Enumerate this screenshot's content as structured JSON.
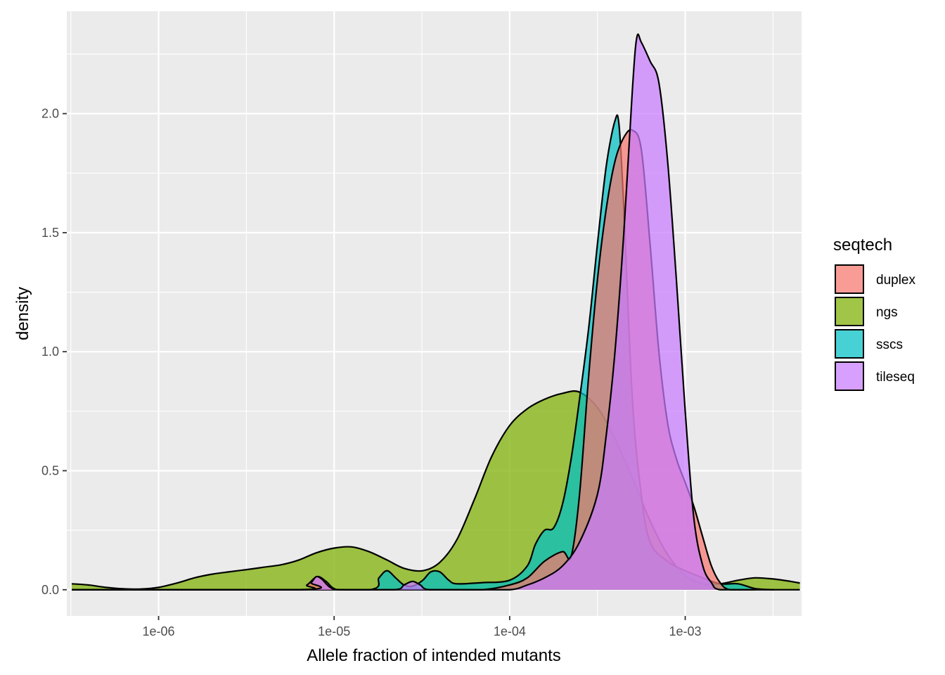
{
  "chart_data": {
    "type": "area",
    "subtype": "density",
    "title": "",
    "xlabel": "Allele fraction of intended mutants",
    "ylabel": "density",
    "x_scale": "log10",
    "xlim": [
      3e-07,
      0.0046
    ],
    "ylim": [
      -0.11,
      2.43
    ],
    "x_ticks": [
      {
        "value": 1e-06,
        "label": "1e-06"
      },
      {
        "value": 1e-05,
        "label": "1e-05"
      },
      {
        "value": 0.0001,
        "label": "1e-04"
      },
      {
        "value": 0.001,
        "label": "1e-03"
      }
    ],
    "y_ticks": [
      {
        "value": 0.0,
        "label": "0.0"
      },
      {
        "value": 0.5,
        "label": "0.5"
      },
      {
        "value": 1.0,
        "label": "1.0"
      },
      {
        "value": 1.5,
        "label": "1.5"
      },
      {
        "value": 2.0,
        "label": "2.0"
      }
    ],
    "grid": true,
    "legend": {
      "title": "seqtech",
      "position": "right"
    },
    "series": [
      {
        "name": "ngs",
        "color": "#7CAE00",
        "points": [
          [
            3.2e-07,
            0.025
          ],
          [
            4e-07,
            0.02
          ],
          [
            5e-07,
            0.01
          ],
          [
            6.3e-07,
            0.004
          ],
          [
            7.9e-07,
            0.003
          ],
          [
            1e-06,
            0.01
          ],
          [
            1.3e-06,
            0.03
          ],
          [
            1.6e-06,
            0.05
          ],
          [
            2e-06,
            0.065
          ],
          [
            2.5e-06,
            0.075
          ],
          [
            3.2e-06,
            0.085
          ],
          [
            4e-06,
            0.095
          ],
          [
            5e-06,
            0.105
          ],
          [
            6.3e-06,
            0.125
          ],
          [
            7.9e-06,
            0.155
          ],
          [
            1e-05,
            0.175
          ],
          [
            1.26e-05,
            0.18
          ],
          [
            1.58e-05,
            0.16
          ],
          [
            2e-05,
            0.125
          ],
          [
            2.5e-05,
            0.09
          ],
          [
            3.2e-05,
            0.08
          ],
          [
            4e-05,
            0.115
          ],
          [
            5e-05,
            0.21
          ],
          [
            6.3e-05,
            0.38
          ],
          [
            7.9e-05,
            0.56
          ],
          [
            0.0001,
            0.69
          ],
          [
            0.000126,
            0.76
          ],
          [
            0.000158,
            0.8
          ],
          [
            0.0002,
            0.825
          ],
          [
            0.00025,
            0.83
          ],
          [
            0.00032,
            0.76
          ],
          [
            0.0004,
            0.63
          ],
          [
            0.0005,
            0.47
          ],
          [
            0.00063,
            0.29
          ],
          [
            0.00079,
            0.15
          ],
          [
            0.001,
            0.06
          ],
          [
            0.00126,
            0.025
          ],
          [
            0.00158,
            0.025
          ],
          [
            0.002,
            0.04
          ],
          [
            0.0025,
            0.05
          ],
          [
            0.0032,
            0.045
          ],
          [
            0.004,
            0.035
          ],
          [
            0.0045,
            0.028
          ]
        ]
      },
      {
        "name": "sscs",
        "color": "#00BFC4",
        "points": [
          [
            3.2e-07,
            0.0
          ],
          [
            5e-06,
            0.0
          ],
          [
            1.58e-05,
            0.0
          ],
          [
            1.8e-05,
            0.05
          ],
          [
            2e-05,
            0.08
          ],
          [
            2.24e-05,
            0.05
          ],
          [
            2.5e-05,
            0.02
          ],
          [
            2.8e-05,
            0.015
          ],
          [
            3.2e-05,
            0.04
          ],
          [
            3.55e-05,
            0.075
          ],
          [
            4e-05,
            0.075
          ],
          [
            4.5e-05,
            0.04
          ],
          [
            5e-05,
            0.025
          ],
          [
            7e-05,
            0.03
          ],
          [
            0.0001,
            0.04
          ],
          [
            0.000126,
            0.1
          ],
          [
            0.00014,
            0.19
          ],
          [
            0.000158,
            0.25
          ],
          [
            0.000178,
            0.26
          ],
          [
            0.0002,
            0.36
          ],
          [
            0.000224,
            0.55
          ],
          [
            0.00025,
            0.8
          ],
          [
            0.000282,
            1.1
          ],
          [
            0.000316,
            1.45
          ],
          [
            0.000355,
            1.78
          ],
          [
            0.000398,
            1.97
          ],
          [
            0.00042,
            1.95
          ],
          [
            0.000447,
            1.6
          ],
          [
            0.0005,
            0.8
          ],
          [
            0.000562,
            0.4
          ],
          [
            0.000631,
            0.2
          ],
          [
            0.00079,
            0.12
          ],
          [
            0.001,
            0.08
          ],
          [
            0.00126,
            0.05
          ],
          [
            0.00158,
            0.025
          ],
          [
            0.002,
            0.025
          ],
          [
            0.0025,
            0.005
          ],
          [
            0.0032,
            0.0
          ]
        ]
      },
      {
        "name": "duplex",
        "color": "#F8766D",
        "points": [
          [
            3.2e-07,
            0.0
          ],
          [
            6e-06,
            0.0
          ],
          [
            7e-06,
            0.02
          ],
          [
            8e-06,
            0.055
          ],
          [
            9e-06,
            0.035
          ],
          [
            1e-05,
            0.005
          ],
          [
            1.2e-05,
            0.0
          ],
          [
            4e-05,
            0.0
          ],
          [
            7e-05,
            0.0
          ],
          [
            0.0001,
            0.02
          ],
          [
            0.000126,
            0.05
          ],
          [
            0.000158,
            0.12
          ],
          [
            0.0002,
            0.16
          ],
          [
            0.000224,
            0.14
          ],
          [
            0.00025,
            0.4
          ],
          [
            0.000282,
            0.9
          ],
          [
            0.000316,
            1.3
          ],
          [
            0.000355,
            1.6
          ],
          [
            0.000398,
            1.8
          ],
          [
            0.000447,
            1.9
          ],
          [
            0.0005,
            1.93
          ],
          [
            0.000562,
            1.85
          ],
          [
            0.000631,
            1.45
          ],
          [
            0.000708,
            1.0
          ],
          [
            0.000794,
            0.7
          ],
          [
            0.000891,
            0.55
          ],
          [
            0.001,
            0.45
          ],
          [
            0.00112,
            0.35
          ],
          [
            0.00126,
            0.22
          ],
          [
            0.00141,
            0.1
          ],
          [
            0.00158,
            0.03
          ],
          [
            0.0018,
            0.0
          ],
          [
            0.0025,
            0.0
          ]
        ]
      },
      {
        "name": "tileseq",
        "color": "#C77CFF",
        "points": [
          [
            3.2e-07,
            0.0
          ],
          [
            6.5e-06,
            0.0
          ],
          [
            7.4e-06,
            0.03
          ],
          [
            7.9e-06,
            0.055
          ],
          [
            8.5e-06,
            0.045
          ],
          [
            9.5e-06,
            0.01
          ],
          [
            1.1e-05,
            0.0
          ],
          [
            2.2e-05,
            0.0
          ],
          [
            2.5e-05,
            0.02
          ],
          [
            2.8e-05,
            0.035
          ],
          [
            3.1e-05,
            0.02
          ],
          [
            3.5e-05,
            0.0
          ],
          [
            6e-05,
            0.0
          ],
          [
            0.0001,
            0.0
          ],
          [
            0.000126,
            0.02
          ],
          [
            0.000158,
            0.05
          ],
          [
            0.0002,
            0.1
          ],
          [
            0.00025,
            0.2
          ],
          [
            0.000316,
            0.4
          ],
          [
            0.000355,
            0.65
          ],
          [
            0.000398,
            1.0
          ],
          [
            0.000447,
            1.5
          ],
          [
            0.0005,
            2.1
          ],
          [
            0.00053,
            2.32
          ],
          [
            0.000562,
            2.3
          ],
          [
            0.000631,
            2.22
          ],
          [
            0.000708,
            2.13
          ],
          [
            0.000794,
            1.8
          ],
          [
            0.000891,
            1.3
          ],
          [
            0.001,
            0.75
          ],
          [
            0.00112,
            0.3
          ],
          [
            0.00126,
            0.1
          ],
          [
            0.00141,
            0.03
          ],
          [
            0.00158,
            0.0
          ],
          [
            0.0025,
            0.0
          ],
          [
            0.0045,
            0.0
          ]
        ]
      }
    ]
  }
}
